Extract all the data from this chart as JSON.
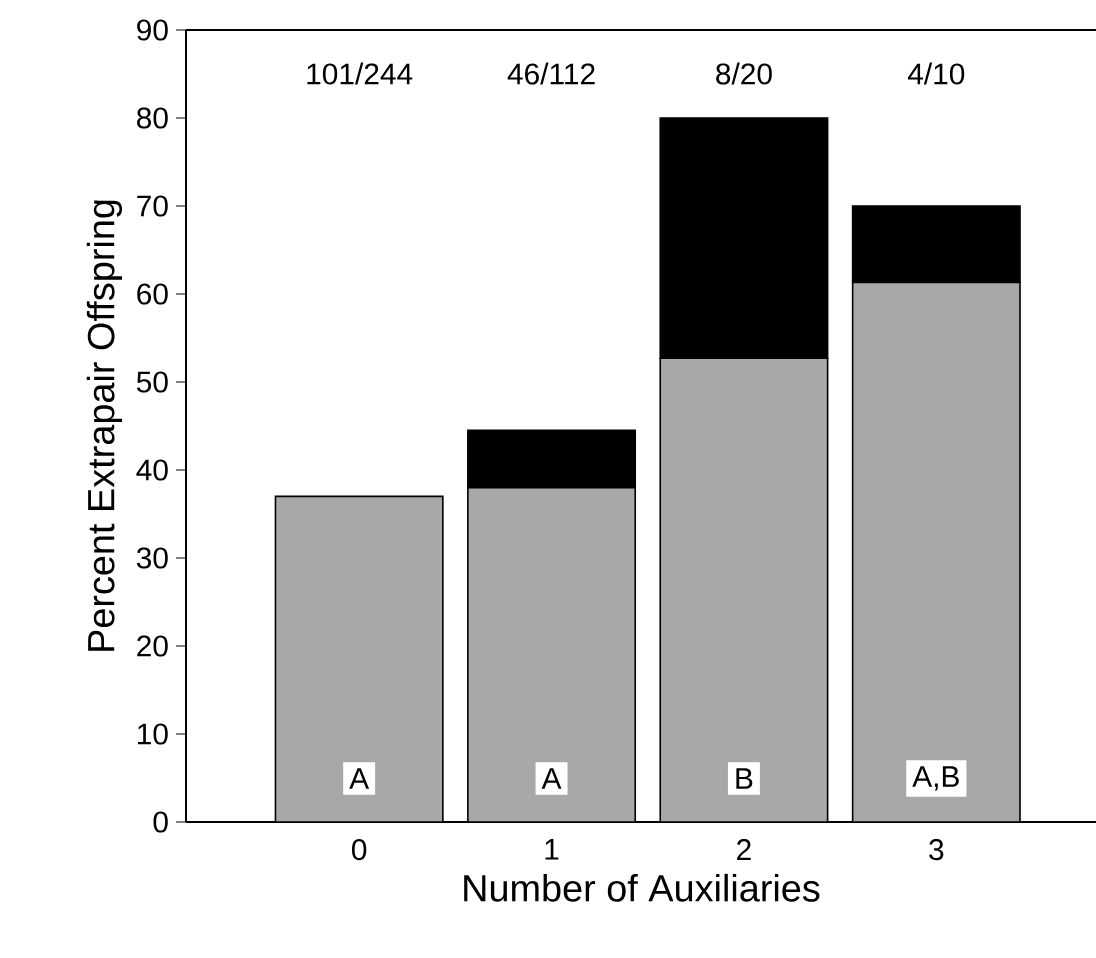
{
  "chart_data": {
    "type": "bar",
    "stacked": true,
    "xlabel": "Number of Auxiliaries",
    "ylabel": "Percent Extrapair Offspring",
    "categories": [
      "0",
      "1",
      "2",
      "3"
    ],
    "series": [
      {
        "color": "#a8a8a8",
        "values": [
          37,
          38,
          52.7,
          61.3
        ]
      },
      {
        "color": "#000000",
        "values": [
          0,
          6.5,
          27.3,
          8.7
        ]
      }
    ],
    "ylim": [
      0,
      90
    ],
    "yticks": [
      0,
      10,
      20,
      30,
      40,
      50,
      60,
      70,
      80,
      90
    ],
    "annotations": [
      "101/244",
      "46/112",
      "8/20",
      "4/10",
      "A",
      "A",
      "B",
      "A,B"
    ]
  }
}
